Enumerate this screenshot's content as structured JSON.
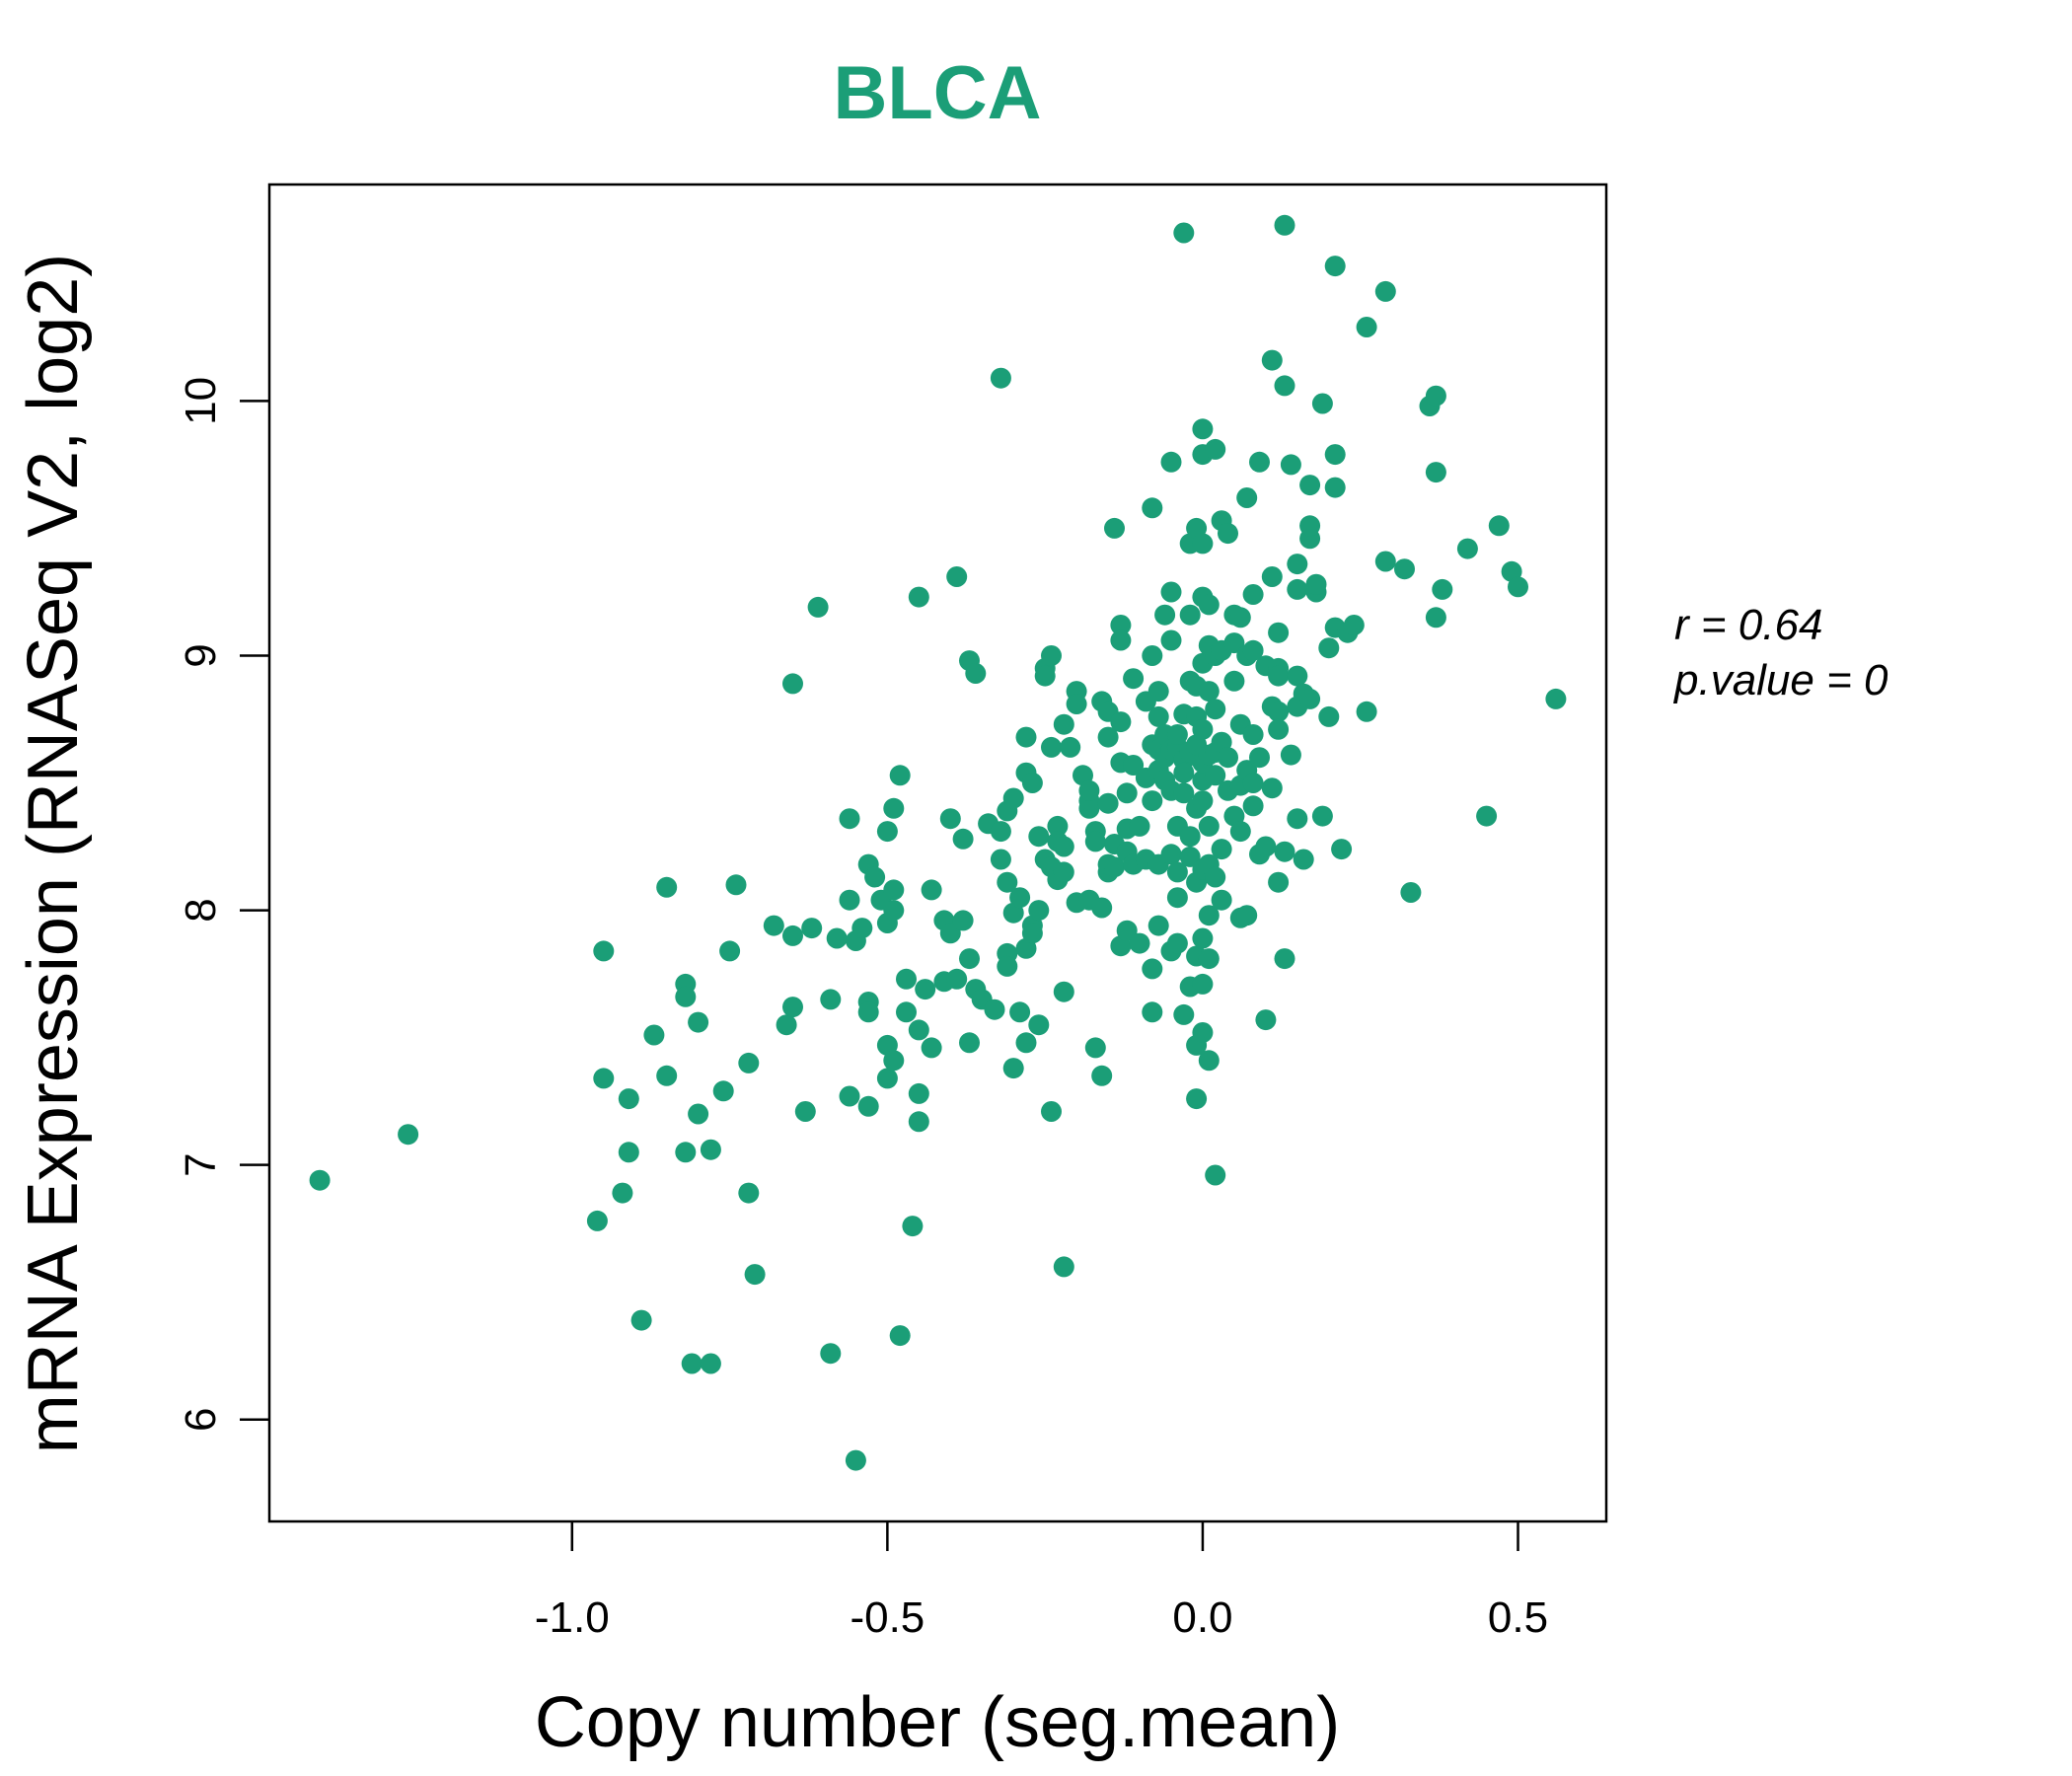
{
  "chart_data": {
    "type": "scatter",
    "title": "BLCA",
    "xlabel": "Copy number (seg.mean)",
    "ylabel": "mRNA Expression (RNASeq V2, log2)",
    "xlim": [
      -1.48,
      0.64
    ],
    "ylim": [
      5.6,
      10.85
    ],
    "x_ticks": [
      -1.0,
      -0.5,
      0.0,
      0.5
    ],
    "x_tick_labels": [
      "-1.0",
      "-0.5",
      "0.0",
      "0.5"
    ],
    "y_ticks": [
      6,
      7,
      8,
      9,
      10
    ],
    "y_tick_labels": [
      "6",
      "7",
      "8",
      "9",
      "10"
    ],
    "stats": {
      "r_label": "r = 0.64",
      "p_label": "p.value = 0"
    },
    "grid": false,
    "colors": {
      "points": "#1b9e77",
      "title": "#1b9e77",
      "axis": "#000000"
    },
    "points": [
      [
        -1.4,
        6.94
      ],
      [
        -1.26,
        7.12
      ],
      [
        -0.96,
        6.78
      ],
      [
        -0.95,
        7.84
      ],
      [
        -0.95,
        7.34
      ],
      [
        -0.92,
        6.89
      ],
      [
        -0.91,
        7.05
      ],
      [
        -0.91,
        7.26
      ],
      [
        -0.89,
        6.39
      ],
      [
        -0.87,
        7.51
      ],
      [
        -0.85,
        7.35
      ],
      [
        -0.85,
        8.09
      ],
      [
        -0.82,
        7.71
      ],
      [
        -0.82,
        7.66
      ],
      [
        -0.82,
        7.05
      ],
      [
        -0.81,
        6.22
      ],
      [
        -0.8,
        7.56
      ],
      [
        -0.8,
        7.2
      ],
      [
        -0.78,
        6.22
      ],
      [
        -0.78,
        7.06
      ],
      [
        -0.76,
        7.29
      ],
      [
        -0.75,
        7.84
      ],
      [
        -0.74,
        8.1
      ],
      [
        -0.72,
        7.4
      ],
      [
        -0.72,
        6.89
      ],
      [
        -0.71,
        6.57
      ],
      [
        -0.68,
        7.94
      ],
      [
        -0.66,
        7.55
      ],
      [
        -0.65,
        7.62
      ],
      [
        -0.65,
        7.9
      ],
      [
        -0.65,
        8.89
      ],
      [
        -0.63,
        7.21
      ],
      [
        -0.62,
        7.93
      ],
      [
        -0.61,
        9.19
      ],
      [
        -0.59,
        7.65
      ],
      [
        -0.59,
        6.26
      ],
      [
        -0.58,
        7.89
      ],
      [
        -0.56,
        8.04
      ],
      [
        -0.56,
        8.36
      ],
      [
        -0.56,
        7.27
      ],
      [
        -0.55,
        7.88
      ],
      [
        -0.55,
        5.84
      ],
      [
        -0.54,
        7.93
      ],
      [
        -0.53,
        7.64
      ],
      [
        -0.53,
        7.6
      ],
      [
        -0.53,
        8.18
      ],
      [
        -0.53,
        7.23
      ],
      [
        -0.52,
        8.13
      ],
      [
        -0.51,
        8.04
      ],
      [
        -0.5,
        8.31
      ],
      [
        -0.5,
        7.95
      ],
      [
        -0.5,
        7.47
      ],
      [
        -0.5,
        7.34
      ],
      [
        -0.49,
        8.0
      ],
      [
        -0.49,
        7.41
      ],
      [
        -0.49,
        8.4
      ],
      [
        -0.49,
        8.08
      ],
      [
        -0.48,
        8.53
      ],
      [
        -0.48,
        6.33
      ],
      [
        -0.47,
        7.73
      ],
      [
        -0.47,
        7.6
      ],
      [
        -0.46,
        6.76
      ],
      [
        -0.45,
        9.23
      ],
      [
        -0.45,
        7.28
      ],
      [
        -0.45,
        7.53
      ],
      [
        -0.45,
        7.17
      ],
      [
        -0.44,
        7.69
      ],
      [
        -0.43,
        8.08
      ],
      [
        -0.43,
        7.46
      ],
      [
        -0.41,
        7.96
      ],
      [
        -0.41,
        7.72
      ],
      [
        -0.4,
        8.36
      ],
      [
        -0.4,
        7.91
      ],
      [
        -0.39,
        7.73
      ],
      [
        -0.39,
        9.31
      ],
      [
        -0.38,
        7.96
      ],
      [
        -0.38,
        8.28
      ],
      [
        -0.37,
        8.98
      ],
      [
        -0.37,
        7.81
      ],
      [
        -0.37,
        7.48
      ],
      [
        -0.36,
        8.93
      ],
      [
        -0.36,
        7.69
      ],
      [
        -0.35,
        7.65
      ],
      [
        -0.34,
        8.34
      ],
      [
        -0.33,
        7.61
      ],
      [
        -0.32,
        8.31
      ],
      [
        -0.32,
        10.09
      ],
      [
        -0.32,
        8.2
      ],
      [
        -0.31,
        8.39
      ],
      [
        -0.31,
        7.83
      ],
      [
        -0.31,
        7.78
      ],
      [
        -0.31,
        8.11
      ],
      [
        -0.3,
        8.44
      ],
      [
        -0.3,
        7.99
      ],
      [
        -0.3,
        7.38
      ],
      [
        -0.29,
        7.6
      ],
      [
        -0.29,
        8.05
      ],
      [
        -0.28,
        7.85
      ],
      [
        -0.28,
        8.68
      ],
      [
        -0.28,
        8.54
      ],
      [
        -0.28,
        7.48
      ],
      [
        -0.27,
        7.94
      ],
      [
        -0.27,
        8.5
      ],
      [
        -0.27,
        7.91
      ],
      [
        -0.26,
        8.0
      ],
      [
        -0.26,
        8.29
      ],
      [
        -0.26,
        7.55
      ],
      [
        -0.25,
        8.95
      ],
      [
        -0.25,
        8.2
      ],
      [
        -0.25,
        8.92
      ],
      [
        -0.24,
        9.0
      ],
      [
        -0.24,
        7.21
      ],
      [
        -0.24,
        8.64
      ],
      [
        -0.24,
        8.17
      ],
      [
        -0.23,
        8.33
      ],
      [
        -0.23,
        8.12
      ],
      [
        -0.23,
        8.27
      ],
      [
        -0.22,
        7.68
      ],
      [
        -0.22,
        8.73
      ],
      [
        -0.22,
        6.6
      ],
      [
        -0.22,
        8.25
      ],
      [
        -0.22,
        8.15
      ],
      [
        -0.21,
        8.64
      ],
      [
        -0.2,
        8.03
      ],
      [
        -0.2,
        8.86
      ],
      [
        -0.2,
        8.81
      ],
      [
        -0.19,
        8.53
      ],
      [
        -0.18,
        8.4
      ],
      [
        -0.18,
        8.43
      ],
      [
        -0.18,
        8.04
      ],
      [
        -0.18,
        8.47
      ],
      [
        -0.17,
        7.46
      ],
      [
        -0.17,
        8.31
      ],
      [
        -0.17,
        8.27
      ],
      [
        -0.16,
        8.82
      ],
      [
        -0.16,
        8.01
      ],
      [
        -0.16,
        7.35
      ],
      [
        -0.15,
        8.68
      ],
      [
        -0.15,
        8.15
      ],
      [
        -0.15,
        8.78
      ],
      [
        -0.15,
        8.18
      ],
      [
        -0.15,
        8.42
      ],
      [
        -0.14,
        9.5
      ],
      [
        -0.14,
        8.26
      ],
      [
        -0.14,
        8.17
      ],
      [
        -0.13,
        9.12
      ],
      [
        -0.13,
        7.86
      ],
      [
        -0.13,
        8.58
      ],
      [
        -0.13,
        9.06
      ],
      [
        -0.13,
        8.74
      ],
      [
        -0.12,
        8.32
      ],
      [
        -0.12,
        8.23
      ],
      [
        -0.12,
        7.92
      ],
      [
        -0.12,
        8.46
      ],
      [
        -0.11,
        8.91
      ],
      [
        -0.11,
        8.57
      ],
      [
        -0.11,
        8.18
      ],
      [
        -0.1,
        7.87
      ],
      [
        -0.1,
        8.33
      ],
      [
        -0.09,
        8.2
      ],
      [
        -0.09,
        8.82
      ],
      [
        -0.09,
        8.52
      ],
      [
        -0.08,
        8.65
      ],
      [
        -0.08,
        9.58
      ],
      [
        -0.08,
        7.77
      ],
      [
        -0.08,
        9.0
      ],
      [
        -0.08,
        8.43
      ],
      [
        -0.08,
        7.6
      ],
      [
        -0.07,
        8.63
      ],
      [
        -0.07,
        8.86
      ],
      [
        -0.07,
        8.76
      ],
      [
        -0.07,
        8.55
      ],
      [
        -0.07,
        8.18
      ],
      [
        -0.07,
        7.94
      ],
      [
        -0.06,
        8.6
      ],
      [
        -0.06,
        9.16
      ],
      [
        -0.06,
        8.69
      ],
      [
        -0.06,
        8.51
      ],
      [
        -0.05,
        9.25
      ],
      [
        -0.05,
        9.76
      ],
      [
        -0.05,
        8.47
      ],
      [
        -0.05,
        8.22
      ],
      [
        -0.05,
        8.63
      ],
      [
        -0.05,
        7.84
      ],
      [
        -0.05,
        9.06
      ],
      [
        -0.04,
        8.64
      ],
      [
        -0.04,
        8.33
      ],
      [
        -0.04,
        8.15
      ],
      [
        -0.04,
        7.87
      ],
      [
        -0.04,
        8.05
      ],
      [
        -0.04,
        8.69
      ],
      [
        -0.03,
        8.59
      ],
      [
        -0.03,
        8.46
      ],
      [
        -0.03,
        10.66
      ],
      [
        -0.03,
        8.77
      ],
      [
        -0.03,
        7.59
      ],
      [
        -0.03,
        8.54
      ],
      [
        -0.02,
        8.21
      ],
      [
        -0.02,
        8.9
      ],
      [
        -0.02,
        7.7
      ],
      [
        -0.02,
        9.44
      ],
      [
        -0.02,
        8.62
      ],
      [
        -0.02,
        9.16
      ],
      [
        -0.02,
        8.29
      ],
      [
        -0.01,
        8.4
      ],
      [
        -0.01,
        8.11
      ],
      [
        -0.01,
        8.88
      ],
      [
        -0.01,
        7.26
      ],
      [
        -0.01,
        7.47
      ],
      [
        -0.01,
        9.5
      ],
      [
        -0.01,
        7.82
      ],
      [
        -0.01,
        8.76
      ],
      [
        -0.01,
        8.65
      ],
      [
        0.0,
        9.79
      ],
      [
        0.0,
        8.51
      ],
      [
        0.0,
        9.23
      ],
      [
        0.0,
        8.43
      ],
      [
        0.0,
        7.71
      ],
      [
        0.0,
        8.16
      ],
      [
        0.0,
        8.97
      ],
      [
        0.0,
        8.71
      ],
      [
        0.0,
        9.44
      ],
      [
        0.0,
        7.52
      ],
      [
        0.0,
        7.89
      ],
      [
        0.0,
        9.89
      ],
      [
        0.0,
        8.58
      ],
      [
        0.01,
        8.61
      ],
      [
        0.01,
        9.04
      ],
      [
        0.01,
        7.41
      ],
      [
        0.01,
        8.33
      ],
      [
        0.01,
        8.86
      ],
      [
        0.01,
        7.81
      ],
      [
        0.01,
        8.18
      ],
      [
        0.01,
        9.2
      ],
      [
        0.01,
        7.98
      ],
      [
        0.02,
        8.62
      ],
      [
        0.02,
        9.81
      ],
      [
        0.02,
        8.53
      ],
      [
        0.02,
        8.13
      ],
      [
        0.02,
        8.79
      ],
      [
        0.02,
        6.96
      ],
      [
        0.02,
        9.0
      ],
      [
        0.03,
        8.24
      ],
      [
        0.03,
        9.53
      ],
      [
        0.03,
        8.66
      ],
      [
        0.03,
        8.04
      ],
      [
        0.03,
        9.02
      ],
      [
        0.04,
        8.47
      ],
      [
        0.04,
        9.48
      ],
      [
        0.04,
        8.6
      ],
      [
        0.05,
        8.9
      ],
      [
        0.05,
        9.05
      ],
      [
        0.05,
        8.37
      ],
      [
        0.05,
        9.16
      ],
      [
        0.06,
        8.73
      ],
      [
        0.06,
        7.97
      ],
      [
        0.06,
        8.31
      ],
      [
        0.06,
        9.15
      ],
      [
        0.06,
        8.49
      ],
      [
        0.07,
        9.0
      ],
      [
        0.07,
        8.55
      ],
      [
        0.07,
        7.98
      ],
      [
        0.07,
        9.62
      ],
      [
        0.08,
        8.69
      ],
      [
        0.08,
        8.41
      ],
      [
        0.08,
        9.02
      ],
      [
        0.08,
        8.5
      ],
      [
        0.08,
        9.24
      ],
      [
        0.09,
        8.22
      ],
      [
        0.09,
        9.76
      ],
      [
        0.09,
        8.6
      ],
      [
        0.1,
        8.96
      ],
      [
        0.1,
        8.25
      ],
      [
        0.1,
        7.57
      ],
      [
        0.11,
        9.31
      ],
      [
        0.11,
        8.48
      ],
      [
        0.11,
        8.8
      ],
      [
        0.11,
        10.16
      ],
      [
        0.12,
        8.78
      ],
      [
        0.12,
        8.95
      ],
      [
        0.12,
        9.09
      ],
      [
        0.12,
        8.71
      ],
      [
        0.12,
        8.11
      ],
      [
        0.12,
        8.92
      ],
      [
        0.13,
        10.06
      ],
      [
        0.13,
        7.81
      ],
      [
        0.13,
        10.69
      ],
      [
        0.13,
        8.23
      ],
      [
        0.14,
        8.61
      ],
      [
        0.14,
        9.75
      ],
      [
        0.15,
        8.8
      ],
      [
        0.15,
        8.36
      ],
      [
        0.15,
        9.36
      ],
      [
        0.15,
        8.92
      ],
      [
        0.15,
        9.26
      ],
      [
        0.16,
        8.85
      ],
      [
        0.16,
        8.2
      ],
      [
        0.17,
        9.46
      ],
      [
        0.17,
        9.51
      ],
      [
        0.17,
        9.67
      ],
      [
        0.17,
        8.83
      ],
      [
        0.18,
        9.25
      ],
      [
        0.18,
        9.28
      ],
      [
        0.19,
        8.37
      ],
      [
        0.19,
        9.99
      ],
      [
        0.2,
        8.76
      ],
      [
        0.2,
        9.03
      ],
      [
        0.21,
        9.79
      ],
      [
        0.21,
        9.66
      ],
      [
        0.21,
        9.11
      ],
      [
        0.21,
        10.53
      ],
      [
        0.22,
        8.24
      ],
      [
        0.23,
        9.09
      ],
      [
        0.24,
        9.12
      ],
      [
        0.26,
        8.78
      ],
      [
        0.26,
        10.29
      ],
      [
        0.29,
        10.43
      ],
      [
        0.29,
        9.37
      ],
      [
        0.32,
        9.34
      ],
      [
        0.33,
        8.07
      ],
      [
        0.36,
        9.98
      ],
      [
        0.37,
        9.72
      ],
      [
        0.37,
        10.02
      ],
      [
        0.37,
        9.15
      ],
      [
        0.38,
        9.26
      ],
      [
        0.42,
        9.42
      ],
      [
        0.45,
        8.37
      ],
      [
        0.47,
        9.51
      ],
      [
        0.49,
        9.33
      ],
      [
        0.5,
        9.27
      ],
      [
        0.56,
        8.83
      ]
    ]
  }
}
